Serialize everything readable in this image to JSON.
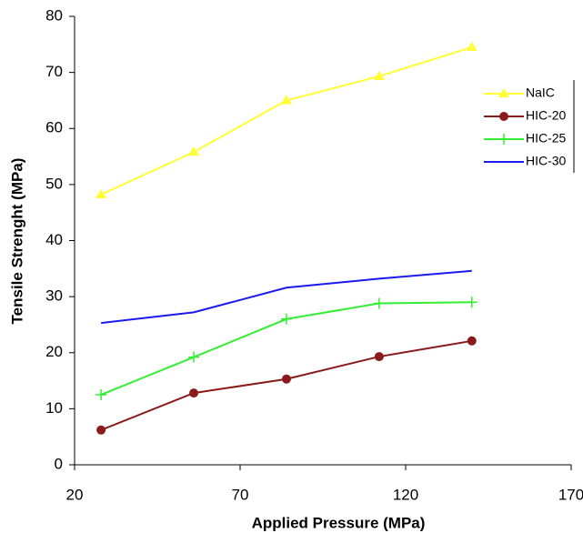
{
  "chart_data": {
    "type": "line",
    "x_label": "Applied Pressure (MPa)",
    "y_label": "Tensile Strenght (MPa)",
    "x": [
      28,
      56,
      84,
      112,
      140
    ],
    "series": [
      {
        "name": "NaIC",
        "color": "#ffff33",
        "marker": "triangle",
        "values": [
          48.2,
          55.8,
          65,
          69.3,
          74.5
        ]
      },
      {
        "name": "HIC-20",
        "color": "#8b1a1a",
        "marker": "circle",
        "values": [
          6.2,
          12.8,
          15.3,
          19.3,
          22.1
        ]
      },
      {
        "name": "HIC-25",
        "color": "#33ee33",
        "marker": "plus",
        "values": [
          12.5,
          19.2,
          26,
          28.8,
          29
        ]
      },
      {
        "name": "HIC-30",
        "color": "#1a1aee",
        "marker": "none",
        "values": [
          25.3,
          27.2,
          31.6,
          33.2,
          34.6
        ]
      }
    ],
    "xlim": [
      20,
      170
    ],
    "xticks": [
      20,
      70,
      120,
      170
    ],
    "ylim": [
      0,
      80
    ],
    "yticks": [
      0,
      10,
      20,
      30,
      40,
      50,
      60,
      70,
      80
    ],
    "grid": false,
    "legend": "right"
  }
}
